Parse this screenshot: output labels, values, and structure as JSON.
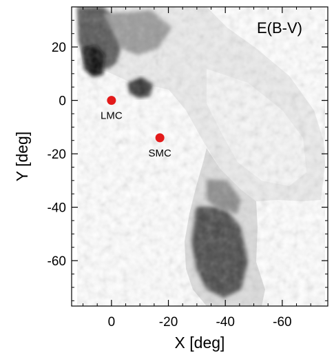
{
  "chart_data": {
    "type": "heatmap",
    "title": "E(B-V)",
    "xlabel": "X [deg]",
    "ylabel": "Y [deg]",
    "xlim": [
      14,
      -76
    ],
    "ylim": [
      -77,
      35
    ],
    "x_ticks": [
      {
        "value": 0,
        "label": "0"
      },
      {
        "value": -20,
        "label": "-20"
      },
      {
        "value": -40,
        "label": "-40"
      },
      {
        "value": -60,
        "label": "-60"
      }
    ],
    "y_ticks": [
      {
        "value": 20,
        "label": "20"
      },
      {
        "value": 0,
        "label": "0"
      },
      {
        "value": -20,
        "label": "-20"
      },
      {
        "value": -40,
        "label": "-40"
      },
      {
        "value": -60,
        "label": "-60"
      }
    ],
    "colormap": [
      "#ffffff",
      "#000000"
    ],
    "points": [
      {
        "name": "LMC",
        "label": "LMC",
        "x": 0,
        "y": 0,
        "color": "#e31a1a"
      },
      {
        "name": "SMC",
        "label": "SMC",
        "x": -17,
        "y": -14,
        "color": "#e31a1a"
      }
    ]
  }
}
